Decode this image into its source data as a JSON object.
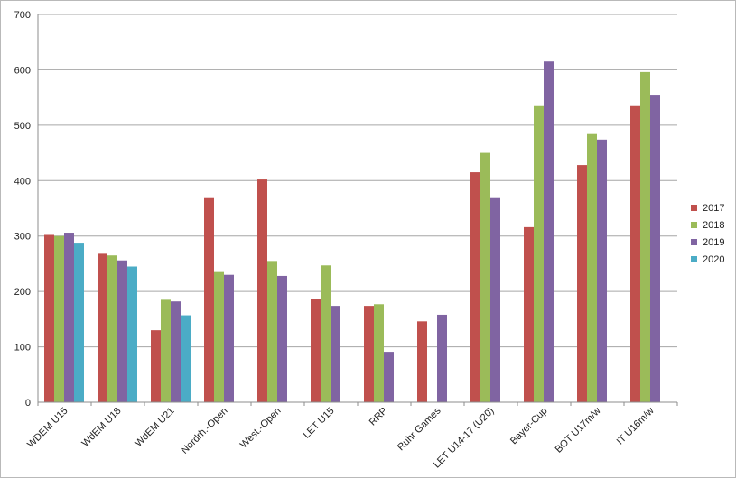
{
  "chart_data": {
    "type": "bar",
    "title": "",
    "xlabel": "",
    "ylabel": "",
    "ylim": [
      0,
      700
    ],
    "yticks": [
      "0",
      "100",
      "200",
      "300",
      "400",
      "500",
      "600",
      "700"
    ],
    "grid": true,
    "legend_position": "right",
    "categories": [
      "WDEM U15",
      "WdEM U18",
      "WdEM U21",
      "Nordrh.-Open",
      "West.-Open",
      "LET U15",
      "RRP",
      "Ruhr Games",
      "LET U14-17 (U20)",
      "Bayer-Cup",
      "BOT U17m/w",
      "IT U16m/w"
    ],
    "series": [
      {
        "name": "2017",
        "color": "#c0504d",
        "values": [
          302,
          268,
          130,
          370,
          402,
          187,
          174,
          146,
          415,
          316,
          428,
          536
        ]
      },
      {
        "name": "2018",
        "color": "#9bbb59",
        "values": [
          300,
          265,
          185,
          235,
          255,
          247,
          177,
          null,
          450,
          536,
          484,
          596
        ]
      },
      {
        "name": "2019",
        "color": "#8064a2",
        "values": [
          306,
          256,
          182,
          230,
          228,
          174,
          91,
          158,
          370,
          615,
          474,
          555
        ]
      },
      {
        "name": "2020",
        "color": "#4bacc6",
        "values": [
          288,
          245,
          157,
          null,
          null,
          null,
          null,
          null,
          null,
          null,
          null,
          null
        ]
      }
    ]
  }
}
